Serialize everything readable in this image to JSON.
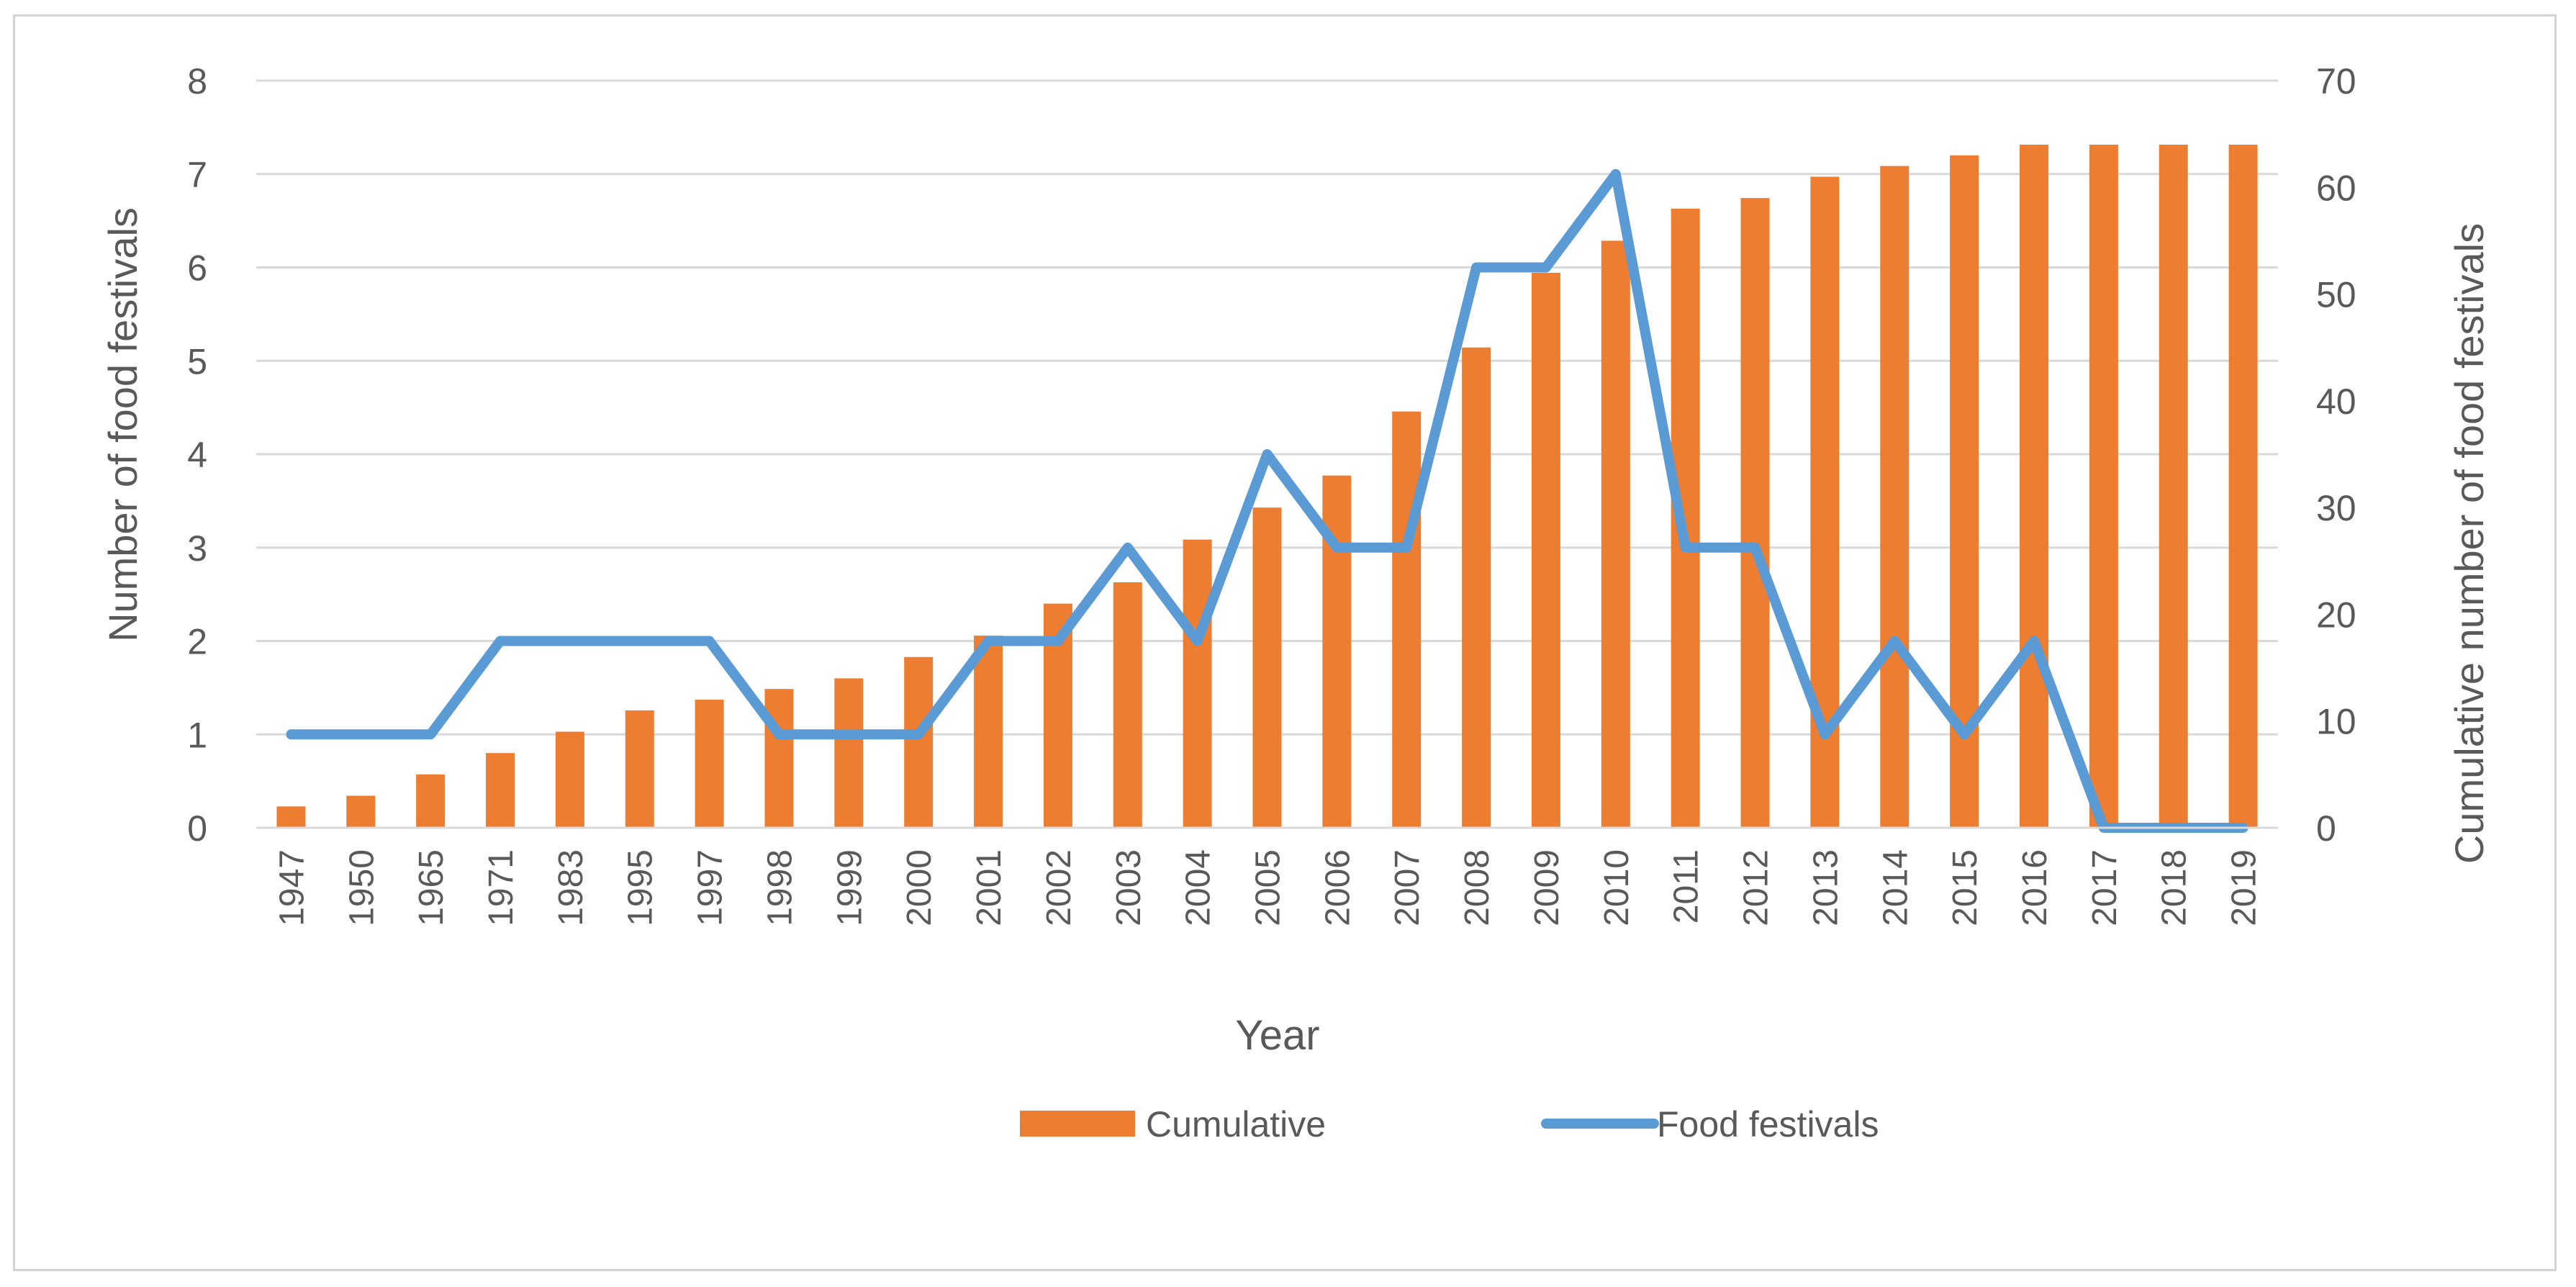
{
  "chart_data": {
    "type": "bar+line",
    "title": "",
    "xlabel": "Year",
    "ylabel": "Number of food festivals",
    "y2label": "Cumulative number of food festivals",
    "ylim": [
      0,
      8
    ],
    "y2lim": [
      0,
      70
    ],
    "yticks": [
      "0",
      "1",
      "2",
      "3",
      "4",
      "5",
      "6",
      "7",
      "8"
    ],
    "y2ticks": [
      "0",
      "10",
      "20",
      "30",
      "40",
      "50",
      "60",
      "70"
    ],
    "grid": true,
    "legend_position": "bottom",
    "categories": [
      "1947",
      "1950",
      "1965",
      "1971",
      "1983",
      "1995",
      "1997",
      "1998",
      "1999",
      "2000",
      "2001",
      "2002",
      "2003",
      "2004",
      "2005",
      "2006",
      "2007",
      "2008",
      "2009",
      "2010",
      "2011",
      "2012",
      "2013",
      "2014",
      "2015",
      "2016",
      "2017",
      "2018",
      "2019"
    ],
    "series": [
      {
        "name": "Cumulative",
        "type": "bar",
        "axis": "secondary",
        "color": "#ED7D31",
        "values": [
          2,
          3,
          5,
          7,
          9,
          11,
          12,
          13,
          14,
          16,
          18,
          21,
          23,
          27,
          30,
          33,
          39,
          45,
          52,
          55,
          58,
          59,
          61,
          62,
          63,
          64,
          64,
          64,
          64
        ]
      },
      {
        "name": "Food festivals",
        "type": "line",
        "axis": "primary",
        "color": "#5B9BD5",
        "values": [
          1,
          1,
          1,
          2,
          2,
          2,
          2,
          1,
          1,
          1,
          2,
          2,
          3,
          2,
          4,
          3,
          3,
          6,
          6,
          7,
          3,
          3,
          1,
          2,
          1,
          2,
          0,
          0,
          0
        ]
      }
    ]
  }
}
